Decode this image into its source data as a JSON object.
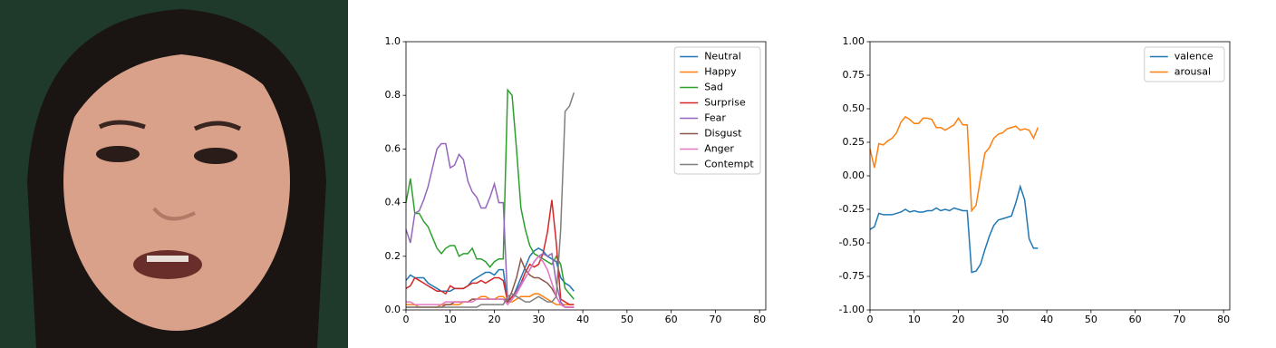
{
  "chart_data": [
    {
      "type": "line",
      "legend": "upper right",
      "grid": false,
      "xlim": [
        0,
        81.4
      ],
      "xticks": [
        0,
        10,
        20,
        30,
        40,
        50,
        60,
        70,
        80
      ],
      "ylim": [
        0,
        1
      ],
      "yticks": [
        {
          "value": 0,
          "label": "0.0"
        },
        0.2,
        0.4,
        0.6,
        0.8,
        {
          "value": 1,
          "label": "1.0"
        }
      ],
      "x": [
        0,
        1,
        2,
        3,
        4,
        5,
        6,
        7,
        8,
        9,
        10,
        11,
        12,
        13,
        14,
        15,
        16,
        17,
        18,
        19,
        20,
        21,
        22,
        23,
        24,
        25,
        26,
        27,
        28,
        29,
        30,
        31,
        32,
        33,
        34,
        35,
        36,
        37,
        38
      ],
      "series": [
        {
          "name": "Neutral",
          "color": "#1f77b4",
          "values": [
            0.11,
            0.13,
            0.12,
            0.12,
            0.12,
            0.1,
            0.09,
            0.08,
            0.07,
            0.07,
            0.07,
            0.08,
            0.08,
            0.08,
            0.09,
            0.11,
            0.12,
            0.13,
            0.14,
            0.14,
            0.13,
            0.15,
            0.15,
            0.03,
            0.04,
            0.08,
            0.12,
            0.16,
            0.2,
            0.22,
            0.23,
            0.22,
            0.2,
            0.19,
            0.18,
            0.12,
            0.1,
            0.09,
            0.07
          ]
        },
        {
          "name": "Happy",
          "color": "#ff7f0e",
          "values": [
            0.02,
            0.02,
            0.02,
            0.01,
            0.01,
            0.01,
            0.01,
            0.01,
            0.02,
            0.02,
            0.02,
            0.02,
            0.02,
            0.03,
            0.03,
            0.04,
            0.04,
            0.05,
            0.05,
            0.04,
            0.04,
            0.05,
            0.05,
            0.03,
            0.03,
            0.04,
            0.05,
            0.05,
            0.05,
            0.06,
            0.06,
            0.05,
            0.04,
            0.03,
            0.02,
            0.02,
            0.02,
            0.02,
            0.02
          ]
        },
        {
          "name": "Sad",
          "color": "#2ca02c",
          "values": [
            0.4,
            0.49,
            0.36,
            0.36,
            0.33,
            0.31,
            0.27,
            0.23,
            0.21,
            0.23,
            0.24,
            0.24,
            0.2,
            0.21,
            0.21,
            0.23,
            0.19,
            0.19,
            0.18,
            0.16,
            0.18,
            0.19,
            0.19,
            0.82,
            0.8,
            0.6,
            0.38,
            0.3,
            0.24,
            0.21,
            0.2,
            0.19,
            0.18,
            0.17,
            0.2,
            0.17,
            0.08,
            0.06,
            0.04
          ]
        },
        {
          "name": "Surprise",
          "color": "#d62728",
          "values": [
            0.08,
            0.09,
            0.12,
            0.11,
            0.1,
            0.09,
            0.08,
            0.07,
            0.07,
            0.06,
            0.09,
            0.08,
            0.08,
            0.08,
            0.09,
            0.1,
            0.1,
            0.11,
            0.1,
            0.11,
            0.12,
            0.12,
            0.11,
            0.03,
            0.05,
            0.07,
            0.1,
            0.14,
            0.17,
            0.16,
            0.17,
            0.21,
            0.29,
            0.41,
            0.25,
            0.04,
            0.03,
            0.02,
            0.02
          ]
        },
        {
          "name": "Fear",
          "color": "#9467bd",
          "values": [
            0.3,
            0.25,
            0.36,
            0.37,
            0.41,
            0.46,
            0.53,
            0.6,
            0.62,
            0.62,
            0.53,
            0.54,
            0.58,
            0.56,
            0.48,
            0.44,
            0.42,
            0.38,
            0.38,
            0.42,
            0.47,
            0.4,
            0.4,
            0.03,
            0.04,
            0.07,
            0.1,
            0.12,
            0.15,
            0.18,
            0.2,
            0.21,
            0.2,
            0.21,
            0.1,
            0.03,
            0.01,
            0.01,
            0.01
          ]
        },
        {
          "name": "Disgust",
          "color": "#8c564b",
          "values": [
            0.01,
            0.01,
            0.01,
            0.01,
            0.01,
            0.01,
            0.01,
            0.01,
            0.01,
            0.02,
            0.02,
            0.03,
            0.03,
            0.03,
            0.03,
            0.04,
            0.04,
            0.04,
            0.04,
            0.04,
            0.04,
            0.04,
            0.04,
            0.03,
            0.07,
            0.12,
            0.19,
            0.15,
            0.13,
            0.12,
            0.12,
            0.11,
            0.1,
            0.08,
            0.05,
            0.02,
            0.01,
            0.01,
            0.01
          ]
        },
        {
          "name": "Anger",
          "color": "#e377c2",
          "values": [
            0.03,
            0.03,
            0.02,
            0.02,
            0.02,
            0.02,
            0.02,
            0.02,
            0.02,
            0.03,
            0.03,
            0.03,
            0.03,
            0.03,
            0.03,
            0.03,
            0.04,
            0.04,
            0.04,
            0.04,
            0.04,
            0.04,
            0.04,
            0.02,
            0.04,
            0.06,
            0.09,
            0.12,
            0.15,
            0.18,
            0.2,
            0.18,
            0.15,
            0.1,
            0.05,
            0.02,
            0.01,
            0.01,
            0.01
          ]
        },
        {
          "name": "Contempt",
          "color": "#7f7f7f",
          "values": [
            0.01,
            0.01,
            0.01,
            0.01,
            0.01,
            0.01,
            0.01,
            0.01,
            0.01,
            0.01,
            0.01,
            0.01,
            0.01,
            0.01,
            0.01,
            0.01,
            0.01,
            0.02,
            0.02,
            0.02,
            0.02,
            0.02,
            0.02,
            0.05,
            0.06,
            0.05,
            0.04,
            0.03,
            0.03,
            0.04,
            0.05,
            0.04,
            0.03,
            0.03,
            0.05,
            0.3,
            0.74,
            0.76,
            0.81
          ]
        }
      ]
    },
    {
      "type": "line",
      "legend": "upper right",
      "grid": false,
      "xlim": [
        0,
        81.4
      ],
      "xticks": [
        0,
        10,
        20,
        30,
        40,
        50,
        60,
        70,
        80
      ],
      "ylim": [
        -1,
        1
      ],
      "yticks": [
        {
          "value": -1,
          "label": "-1.00"
        },
        {
          "value": -0.75,
          "label": "-0.75"
        },
        {
          "value": -0.5,
          "label": "-0.50"
        },
        {
          "value": -0.25,
          "label": "-0.25"
        },
        {
          "value": 0,
          "label": "0.00"
        },
        {
          "value": 0.25,
          "label": "0.25"
        },
        {
          "value": 0.5,
          "label": "0.50"
        },
        {
          "value": 0.75,
          "label": "0.75"
        },
        {
          "value": 1,
          "label": "1.00"
        }
      ],
      "x": [
        0,
        1,
        2,
        3,
        4,
        5,
        6,
        7,
        8,
        9,
        10,
        11,
        12,
        13,
        14,
        15,
        16,
        17,
        18,
        19,
        20,
        21,
        22,
        23,
        24,
        25,
        26,
        27,
        28,
        29,
        30,
        31,
        32,
        33,
        34,
        35,
        36,
        37,
        38
      ],
      "series": [
        {
          "name": "valence",
          "color": "#1f77b4",
          "values": [
            -0.4,
            -0.38,
            -0.28,
            -0.29,
            -0.29,
            -0.29,
            -0.28,
            -0.27,
            -0.25,
            -0.27,
            -0.26,
            -0.27,
            -0.27,
            -0.26,
            -0.26,
            -0.24,
            -0.26,
            -0.25,
            -0.26,
            -0.24,
            -0.25,
            -0.26,
            -0.26,
            -0.72,
            -0.71,
            -0.66,
            -0.55,
            -0.45,
            -0.37,
            -0.33,
            -0.32,
            -0.31,
            -0.3,
            -0.2,
            -0.08,
            -0.18,
            -0.47,
            -0.54,
            -0.54
          ]
        },
        {
          "name": "arousal",
          "color": "#ff7f0e",
          "values": [
            0.2,
            0.06,
            0.24,
            0.23,
            0.26,
            0.28,
            0.32,
            0.4,
            0.44,
            0.42,
            0.39,
            0.39,
            0.43,
            0.43,
            0.42,
            0.36,
            0.36,
            0.34,
            0.36,
            0.38,
            0.43,
            0.38,
            0.38,
            -0.26,
            -0.22,
            -0.02,
            0.17,
            0.21,
            0.28,
            0.31,
            0.32,
            0.35,
            0.36,
            0.37,
            0.34,
            0.35,
            0.34,
            0.28,
            0.36
          ]
        }
      ]
    }
  ]
}
